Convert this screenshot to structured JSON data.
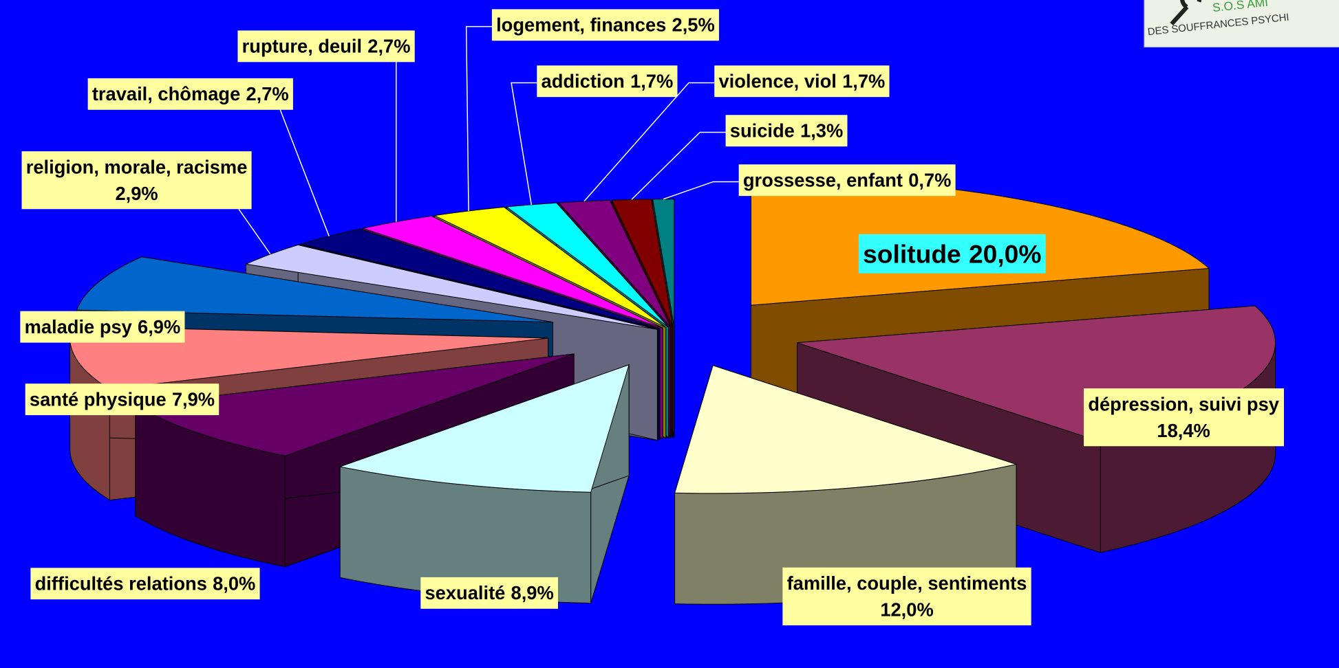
{
  "chart_data": {
    "type": "pie3d",
    "categories": [
      "solitude",
      "dépression, suivi psy",
      "famille, couple, sentiments",
      "sexualité",
      "difficultés relations",
      "santé physique",
      "maladie psy",
      "religion, morale, racisme",
      "travail, chômage",
      "rupture, deuil",
      "logement, finances",
      "addiction",
      "violence, viol",
      "suicide",
      "grossesse, enfant"
    ],
    "values": [
      20.0,
      18.4,
      12.0,
      8.9,
      8.0,
      7.9,
      6.9,
      2.9,
      2.7,
      2.7,
      2.5,
      1.7,
      1.7,
      1.3,
      0.7
    ],
    "value_labels": [
      "20,0%",
      "18,4%",
      "12,0%",
      "8,9%",
      "8,0%",
      "7,9%",
      "6,9%",
      "2,9%",
      "2,7%",
      "2,7%",
      "2,5%",
      "1,7%",
      "1,7%",
      "1,3%",
      "0,7%"
    ],
    "colors": [
      "#ff9900",
      "#993366",
      "#ffffcc",
      "#ccffff",
      "#660066",
      "#ff8080",
      "#0066cc",
      "#ccccff",
      "#000080",
      "#ff00ff",
      "#ffff00",
      "#00ffff",
      "#800080",
      "#800000",
      "#008080"
    ]
  },
  "logo": {
    "line1": "S.O.S AMI",
    "line2": "DES SOUFFRANCES PSYCHI"
  }
}
